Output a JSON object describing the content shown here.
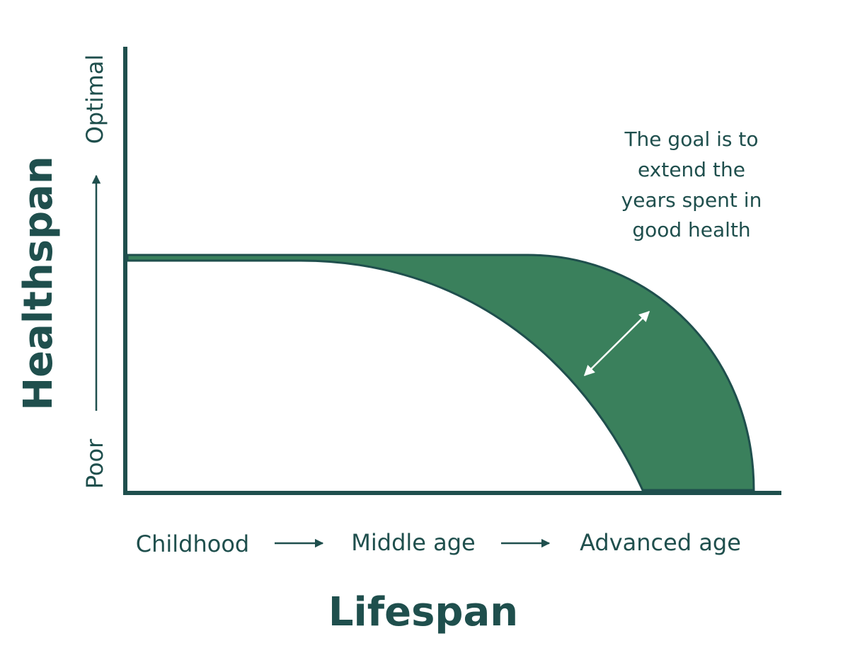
{
  "y_axis": {
    "title": "Healthspan",
    "top_label": "Optimal",
    "bottom_label": "Poor"
  },
  "x_axis": {
    "title": "Lifespan",
    "stages": [
      "Childhood",
      "Middle age",
      "Advanced age"
    ]
  },
  "annotation": {
    "lines": [
      "The goal is to",
      "extend the",
      "years spent in",
      "good health"
    ]
  }
}
